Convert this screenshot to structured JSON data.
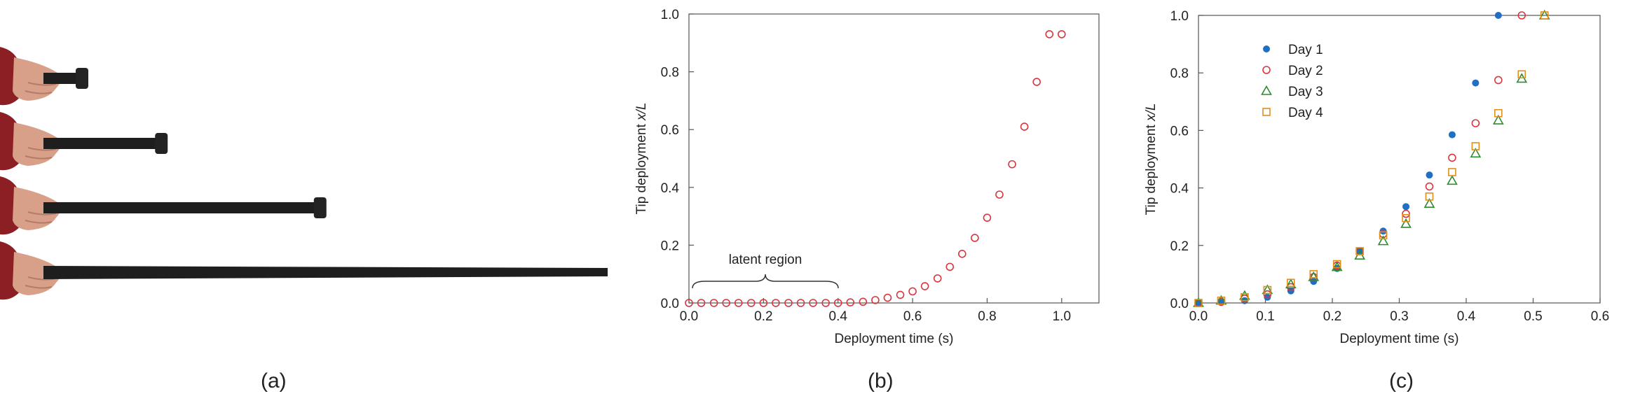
{
  "panels": {
    "a": "(a)",
    "b": "(b)",
    "c": "(c)"
  },
  "colors": {
    "red": "#d9363e",
    "blue": "#1f6fc5",
    "green": "#2e8b2e",
    "orange": "#e0901a"
  },
  "photo": {
    "deployment_stages": [
      0.0,
      0.15,
      0.45,
      1.0
    ]
  },
  "chart_data": [
    {
      "type": "scatter",
      "title": "",
      "xlabel": "Deployment time (s)",
      "ylabel": "Tip deployment x/L",
      "xlim": [
        0,
        1.1
      ],
      "ylim": [
        0,
        1.0
      ],
      "xticks": [
        "0.0",
        "0.2",
        "0.4",
        "0.6",
        "0.8",
        "1.0"
      ],
      "yticks": [
        "0.0",
        "0.2",
        "0.4",
        "0.6",
        "0.8",
        "1.0"
      ],
      "annotation": "latent region",
      "annotation_range": [
        0.0,
        0.41
      ],
      "series": [
        {
          "name": "Tip deployment",
          "x": [
            0.0,
            0.033,
            0.067,
            0.1,
            0.133,
            0.167,
            0.2,
            0.233,
            0.267,
            0.3,
            0.333,
            0.367,
            0.4,
            0.433,
            0.467,
            0.5,
            0.533,
            0.567,
            0.6,
            0.633,
            0.667,
            0.7,
            0.733,
            0.767,
            0.8,
            0.833,
            0.867,
            0.9,
            0.933,
            0.967,
            1.0
          ],
          "y": [
            0.0,
            0.0,
            0.0,
            0.0,
            0.0,
            0.0,
            0.0,
            0.0,
            0.0,
            0.0,
            0.0,
            0.0,
            0.0,
            0.002,
            0.004,
            0.01,
            0.018,
            0.028,
            0.04,
            0.058,
            0.085,
            0.125,
            0.17,
            0.225,
            0.295,
            0.375,
            0.48,
            0.61,
            0.765,
            0.93,
            0.93
          ]
        }
      ]
    },
    {
      "type": "scatter",
      "title": "",
      "xlabel": "Deployment time (s)",
      "ylabel": "Tip deployment x/L",
      "xlim": [
        0,
        0.6
      ],
      "ylim": [
        0,
        1.0
      ],
      "xticks": [
        "0.0",
        "0.1",
        "0.2",
        "0.3",
        "0.4",
        "0.5",
        "0.6"
      ],
      "yticks": [
        "0.0",
        "0.2",
        "0.4",
        "0.6",
        "0.8",
        "1.0"
      ],
      "legend": "top-left",
      "x": [
        0.0,
        0.034,
        0.069,
        0.103,
        0.138,
        0.172,
        0.207,
        0.241,
        0.276,
        0.31,
        0.345,
        0.379,
        0.414,
        0.448,
        0.483,
        0.517
      ],
      "series": [
        {
          "name": "Day 1",
          "marker": "filled-circle",
          "color": "blue",
          "y": [
            0.0,
            0.002,
            0.008,
            0.02,
            0.042,
            0.075,
            0.12,
            0.18,
            0.25,
            0.335,
            0.445,
            0.585,
            0.765,
            1.0,
            null,
            null
          ]
        },
        {
          "name": "Day 2",
          "marker": "open-circle",
          "color": "red",
          "y": [
            0.0,
            0.004,
            0.015,
            0.03,
            0.055,
            0.09,
            0.13,
            0.18,
            0.24,
            0.31,
            0.405,
            0.505,
            0.625,
            0.775,
            1.0,
            null
          ]
        },
        {
          "name": "Day 3",
          "marker": "open-triangle",
          "color": "green",
          "y": [
            0.0,
            0.008,
            0.025,
            0.045,
            0.065,
            0.09,
            0.125,
            0.165,
            0.215,
            0.275,
            0.345,
            0.425,
            0.52,
            0.635,
            0.78,
            1.0
          ]
        },
        {
          "name": "Day 4",
          "marker": "open-square",
          "color": "orange",
          "y": [
            0.0,
            0.008,
            0.02,
            0.045,
            0.07,
            0.1,
            0.135,
            0.18,
            0.235,
            0.295,
            0.37,
            0.455,
            0.545,
            0.66,
            0.795,
            1.0
          ]
        }
      ]
    }
  ]
}
